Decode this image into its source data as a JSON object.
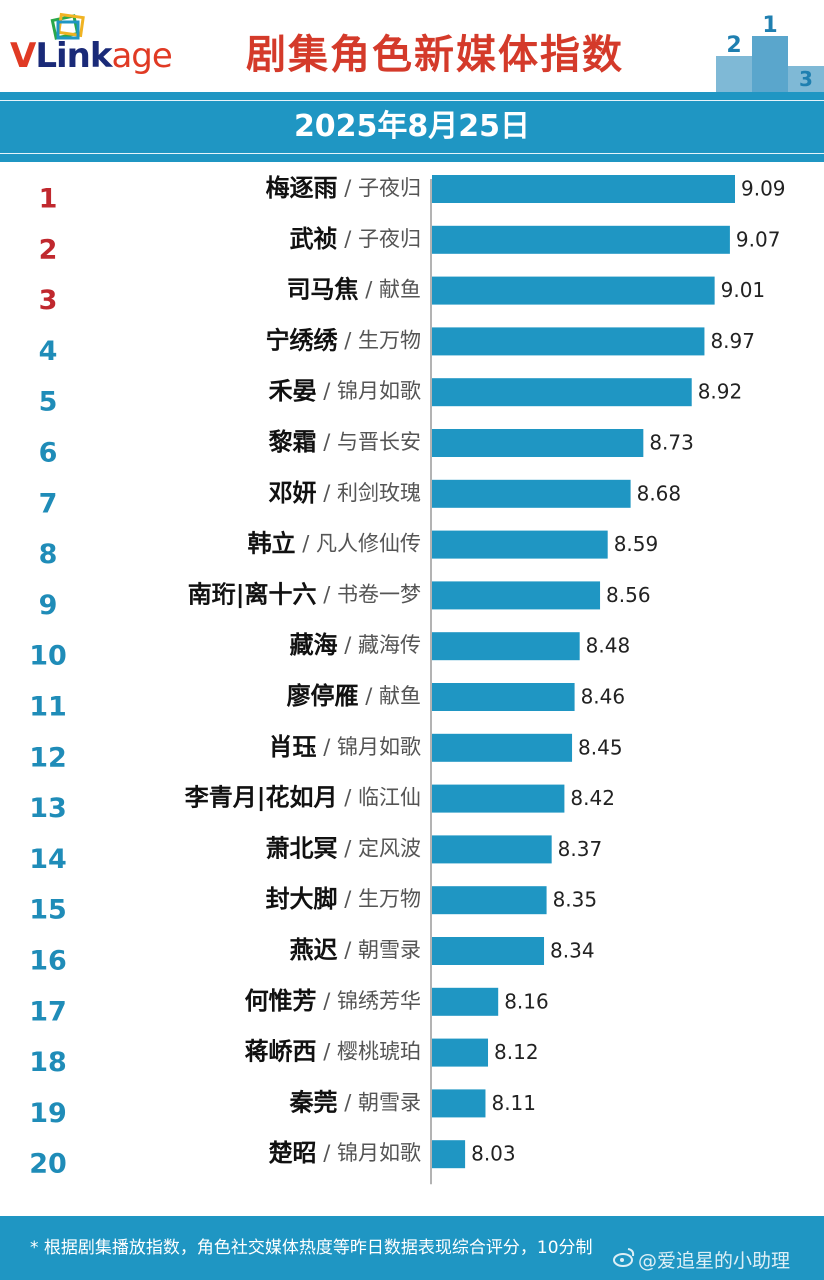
{
  "header": {
    "logo_v": "V",
    "logo_link": "Link",
    "logo_age": "age",
    "title": "剧集角色新媒体指数",
    "podium_digits": [
      "2",
      "1",
      "3"
    ]
  },
  "date": "2025年8月25日",
  "footer": {
    "note": "* 根据剧集播放指数，角色社交媒体热度等昨日数据表现综合评分，10分制",
    "watermark": "@爱追星的小助理"
  },
  "colors": {
    "accent": "#1f96c3",
    "bar": "#1f96c3",
    "title_red": "#d43a2a",
    "rank_top": "#c0282e",
    "rank_rest": "#1f8cb8"
  },
  "chart_data": {
    "type": "bar",
    "orientation": "horizontal",
    "ranks": [
      "1",
      "2",
      "3",
      "4",
      "5",
      "6",
      "7",
      "8",
      "9",
      "10",
      "11",
      "12",
      "13",
      "14",
      "15",
      "16",
      "17",
      "18",
      "19",
      "20"
    ],
    "characters": [
      "梅逐雨",
      "武祯",
      "司马焦",
      "宁绣绣",
      "禾晏",
      "黎霜",
      "邓妍",
      "韩立",
      "南珩|离十六",
      "藏海",
      "廖停雁",
      "肖珏",
      "李青月|花如月",
      "萧北冥",
      "封大脚",
      "燕迟",
      "何惟芳",
      "蒋峤西",
      "秦莞",
      "楚昭"
    ],
    "dramas": [
      "子夜归",
      "子夜归",
      "献鱼",
      "生万物",
      "锦月如歌",
      "与晋长安",
      "利剑玫瑰",
      "凡人修仙传",
      "书卷一梦",
      "藏海传",
      "献鱼",
      "锦月如歌",
      "临江仙",
      "定风波",
      "生万物",
      "朝雪录",
      "锦绣芳华",
      "樱桃琥珀",
      "朝雪录",
      "锦月如歌"
    ],
    "separator": " / ",
    "value_labels": [
      "9.09",
      "9.07",
      "9.01",
      "8.97",
      "8.92",
      "8.73",
      "8.68",
      "8.59",
      "8.56",
      "8.48",
      "8.46",
      "8.45",
      "8.42",
      "8.37",
      "8.35",
      "8.34",
      "8.16",
      "8.12",
      "8.11",
      "8.03"
    ],
    "values": [
      9.09,
      9.07,
      9.01,
      8.97,
      8.92,
      8.73,
      8.68,
      8.59,
      8.56,
      8.48,
      8.46,
      8.45,
      8.42,
      8.37,
      8.35,
      8.34,
      8.16,
      8.12,
      8.11,
      8.03
    ],
    "xlim": [
      7.9,
      9.09
    ],
    "grid": false,
    "legend": "none"
  }
}
